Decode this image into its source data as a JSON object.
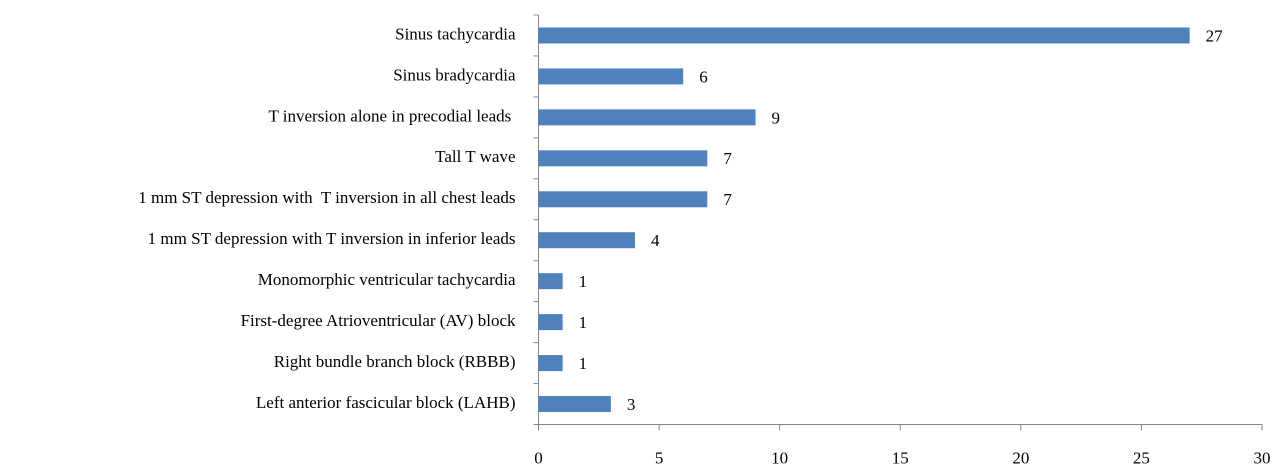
{
  "chart_data": {
    "type": "barh",
    "categories": [
      "Sinus tachycardia",
      "Sinus bradycardia",
      "T inversion alone in precodial leads ",
      "Tall T wave",
      "1 mm ST depression with  T inversion in all chest leads",
      "1 mm ST depression with T inversion in inferior leads",
      "Monomorphic ventricular tachycardia",
      "First-degree Atrioventricular (AV) block",
      "Right bundle branch block (RBBB)",
      "Left anterior fascicular block (LAHB)"
    ],
    "values": [
      27,
      6,
      9,
      7,
      7,
      4,
      1,
      1,
      1,
      3
    ],
    "color": "#4f81bd",
    "xlim": [
      0,
      30
    ],
    "xticks": [
      0,
      5,
      10,
      15,
      20,
      25,
      30
    ],
    "grid": false
  }
}
